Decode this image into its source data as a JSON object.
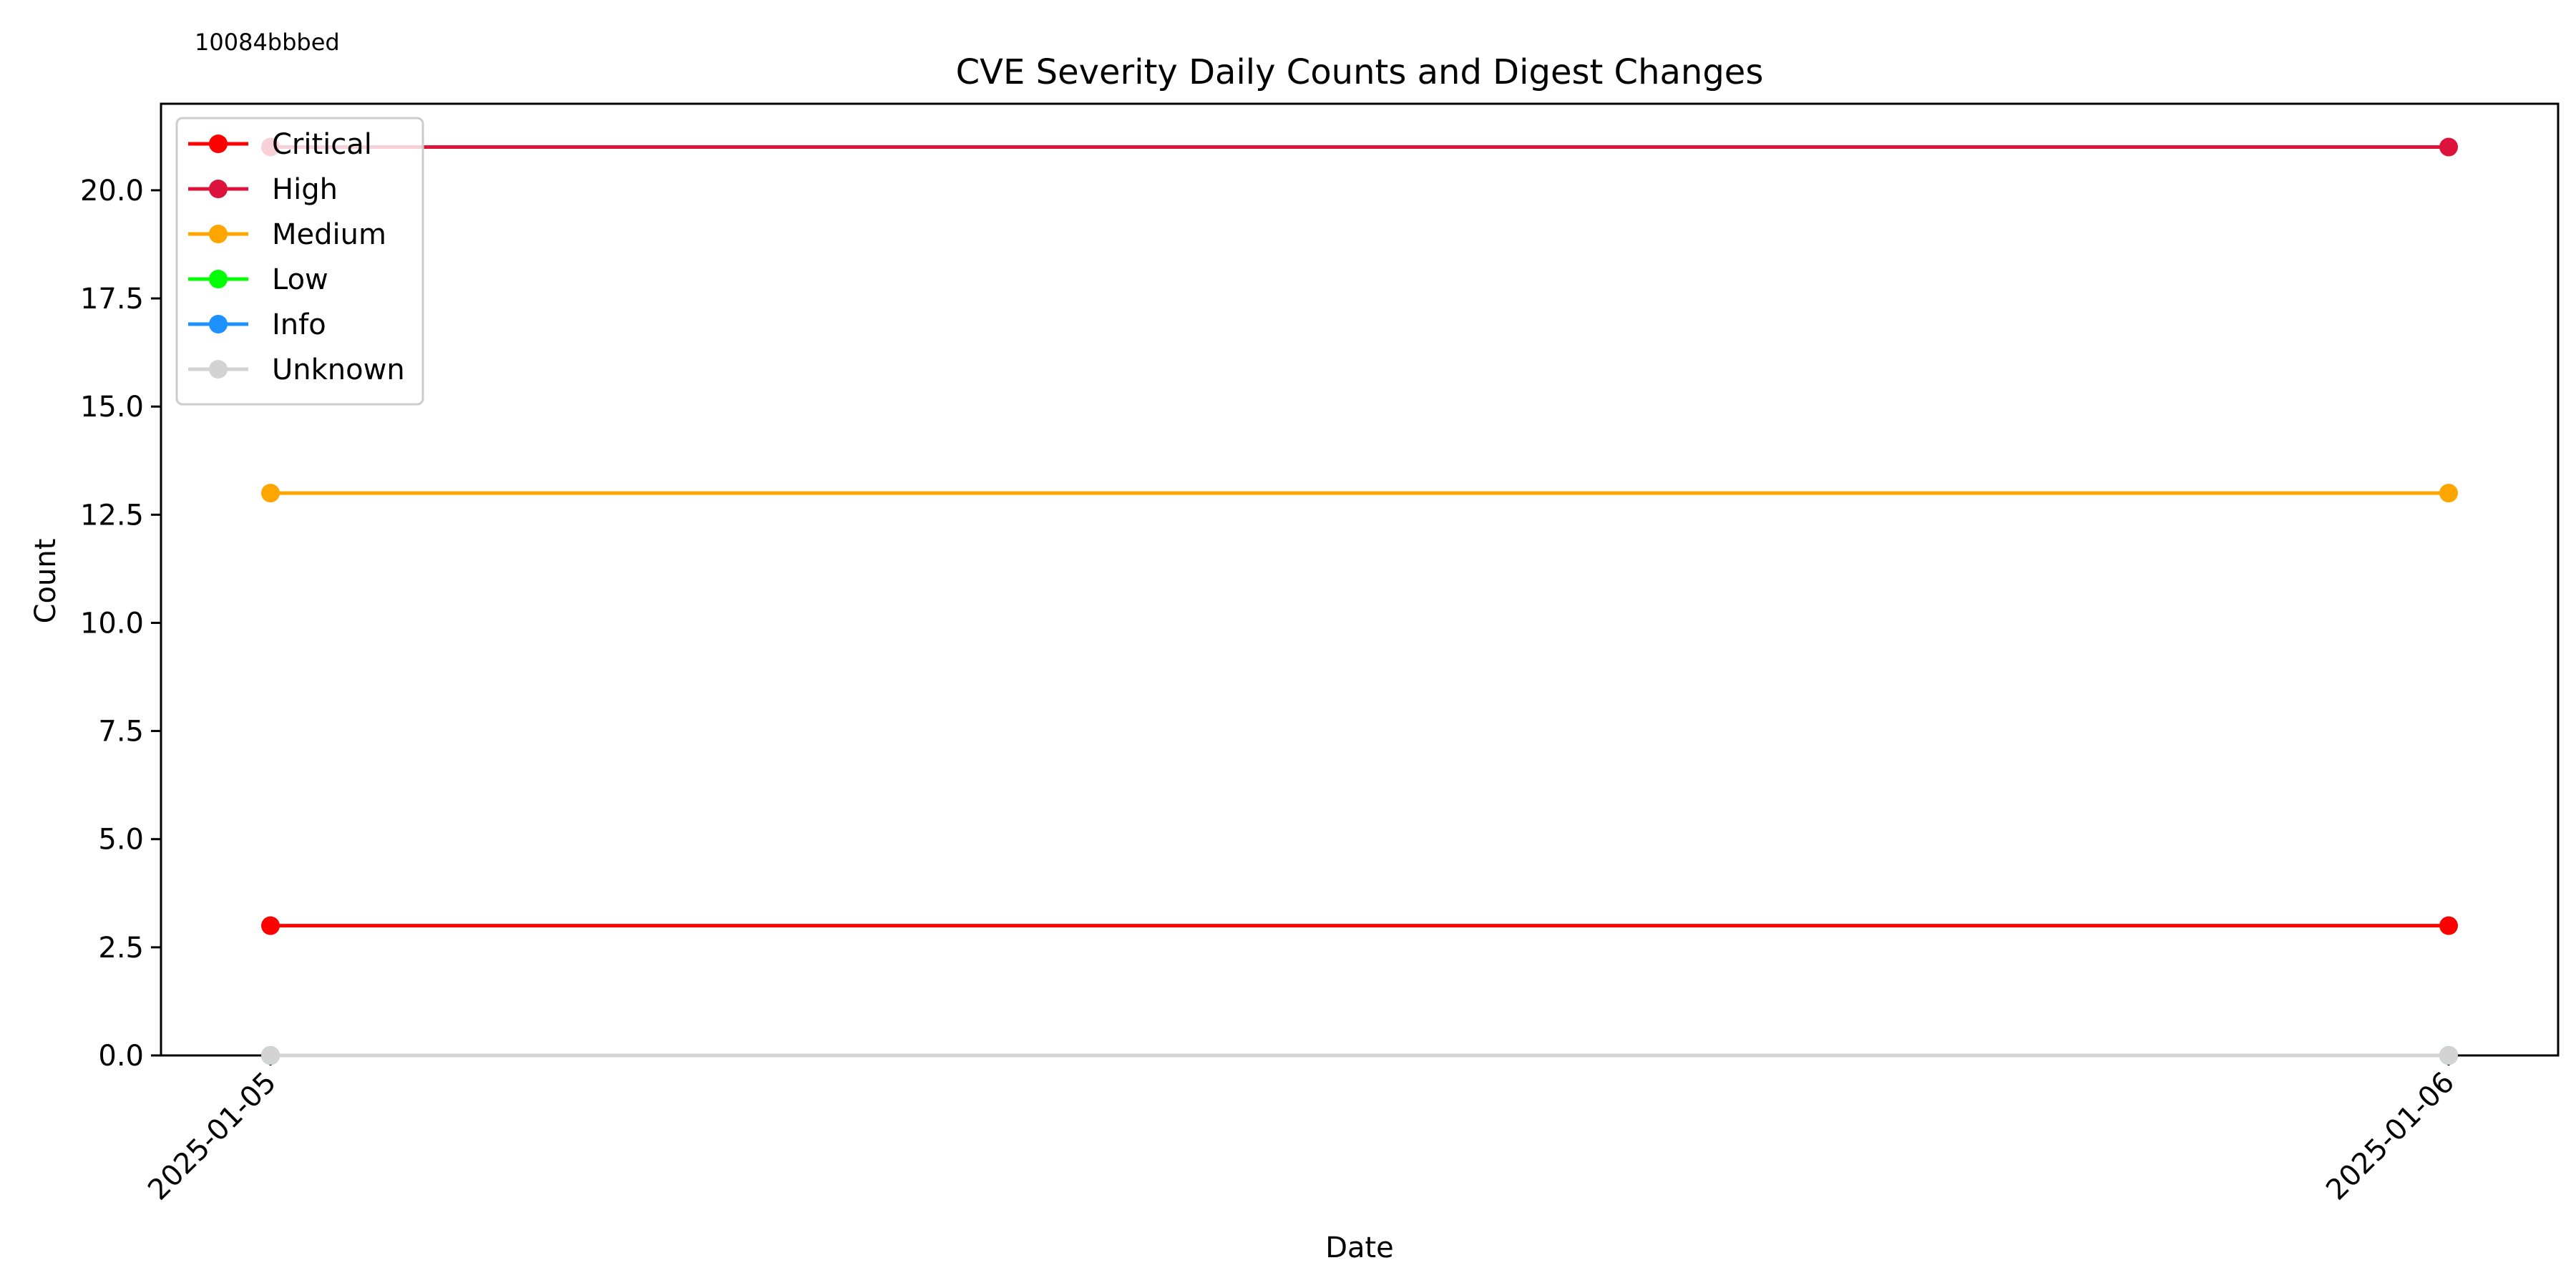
{
  "digest_label": "10084bbbed",
  "chart_data": {
    "type": "line",
    "title": "CVE Severity Daily Counts and Digest Changes",
    "xlabel": "Date",
    "ylabel": "Count",
    "categories": [
      "2025-01-05",
      "2025-01-06"
    ],
    "ylim": [
      0,
      22
    ],
    "yticks": [
      "0.0",
      "2.5",
      "5.0",
      "7.5",
      "10.0",
      "12.5",
      "15.0",
      "17.5",
      "20.0"
    ],
    "legend_position": "top-left",
    "grid": false,
    "series": [
      {
        "name": "Critical",
        "color": "#ff0000",
        "values": [
          3,
          3
        ]
      },
      {
        "name": "High",
        "color": "#dc143c",
        "values": [
          21,
          21
        ]
      },
      {
        "name": "Medium",
        "color": "#ffa500",
        "values": [
          13,
          13
        ]
      },
      {
        "name": "Low",
        "color": "#00ff00",
        "values": [
          0,
          0
        ]
      },
      {
        "name": "Info",
        "color": "#1e90ff",
        "values": [
          0,
          0
        ]
      },
      {
        "name": "Unknown",
        "color": "#d3d3d3",
        "values": [
          0,
          0
        ]
      }
    ]
  }
}
